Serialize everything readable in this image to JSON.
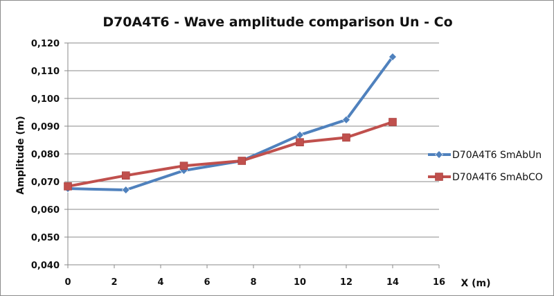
{
  "chart_data": {
    "type": "line",
    "title": "D70A4T6 - Wave amplitude comparison Un - Co",
    "xlabel": "X (m)",
    "ylabel": "Amplitude (m)",
    "xlim": [
      0,
      16
    ],
    "ylim": [
      0.04,
      0.12
    ],
    "x_ticks": [
      0,
      2,
      4,
      6,
      8,
      10,
      12,
      14,
      16
    ],
    "x_tick_labels": [
      "0",
      "2",
      "4",
      "6",
      "8",
      "10",
      "12",
      "14",
      "16"
    ],
    "y_ticks": [
      0.04,
      0.05,
      0.06,
      0.07,
      0.08,
      0.09,
      0.1,
      0.11,
      0.12
    ],
    "y_tick_labels": [
      "0,040",
      "0,050",
      "0,060",
      "0,070",
      "0,080",
      "0,090",
      "0,100",
      "0,110",
      "0,120"
    ],
    "grid": "horizontal",
    "legend_position": "right",
    "series": [
      {
        "name": "D70A4T6 SmAbUn",
        "color": "#4F81BD",
        "marker": "diamond",
        "x": [
          0,
          2.5,
          5,
          7.5,
          10,
          12,
          14
        ],
        "y": [
          0.0675,
          0.067,
          0.074,
          0.0775,
          0.0868,
          0.0923,
          0.115
        ]
      },
      {
        "name": "D70A4T6 SmAbCO",
        "color": "#C0504D",
        "marker": "square",
        "x": [
          0,
          2.5,
          5,
          7.5,
          10,
          12,
          14
        ],
        "y": [
          0.0683,
          0.0722,
          0.0757,
          0.0775,
          0.0842,
          0.0859,
          0.0915
        ]
      }
    ]
  }
}
